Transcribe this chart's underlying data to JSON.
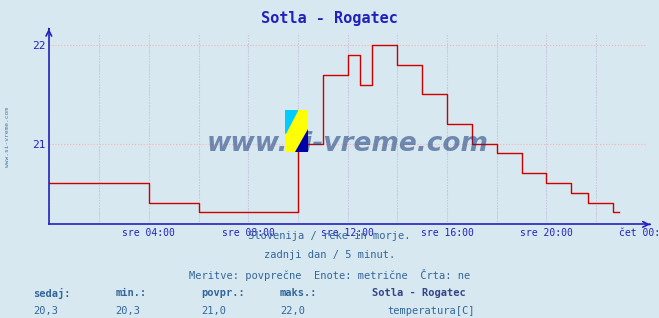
{
  "title": "Sotla - Rogatec",
  "bg_color": "#d8e8f0",
  "plot_bg_color": "#d8e8f0",
  "line_color": "#cc0000",
  "grid_color_h": "#ffb0b0",
  "grid_color_v": "#c8c8e0",
  "axis_color": "#2222bb",
  "text_color": "#336699",
  "dark_text_color": "#334488",
  "ylim": [
    20.18,
    22.12
  ],
  "yticks": [
    21.0,
    22.0
  ],
  "xlim": [
    0,
    288
  ],
  "xtick_labels": [
    "sre 04:00",
    "sre 08:00",
    "sre 12:00",
    "sre 16:00",
    "sre 20:00",
    "čet 00:00"
  ],
  "xtick_positions": [
    48,
    96,
    144,
    192,
    240,
    288
  ],
  "watermark": "www.si-vreme.com",
  "subtitle1": "Slovenija / reke in morje.",
  "subtitle2": "zadnji dan / 5 minut.",
  "subtitle3": "Meritve: povprečne  Enote: metrične  Črta: ne",
  "legend_title": "Sotla - Rogatec",
  "legend_label": "temperatura[C]",
  "stat_labels": [
    "sedaj:",
    "min.:",
    "povpr.:",
    "maks.:"
  ],
  "stat_values": [
    "20,3",
    "20,3",
    "21,0",
    "22,0"
  ],
  "left_label": "www.si-vreme.com",
  "temperature_data": [
    20.6,
    20.6,
    20.6,
    20.6,
    20.6,
    20.6,
    20.6,
    20.6,
    20.6,
    20.6,
    20.6,
    20.6,
    20.6,
    20.6,
    20.6,
    20.6,
    20.6,
    20.6,
    20.6,
    20.6,
    20.6,
    20.6,
    20.6,
    20.6,
    20.6,
    20.6,
    20.6,
    20.6,
    20.6,
    20.6,
    20.6,
    20.6,
    20.6,
    20.6,
    20.6,
    20.6,
    20.6,
    20.6,
    20.6,
    20.6,
    20.6,
    20.6,
    20.6,
    20.6,
    20.6,
    20.6,
    20.6,
    20.6,
    20.4,
    20.4,
    20.4,
    20.4,
    20.4,
    20.4,
    20.4,
    20.4,
    20.4,
    20.4,
    20.4,
    20.4,
    20.4,
    20.4,
    20.4,
    20.4,
    20.4,
    20.4,
    20.4,
    20.4,
    20.4,
    20.4,
    20.4,
    20.4,
    20.3,
    20.3,
    20.3,
    20.3,
    20.3,
    20.3,
    20.3,
    20.3,
    20.3,
    20.3,
    20.3,
    20.3,
    20.3,
    20.3,
    20.3,
    20.3,
    20.3,
    20.3,
    20.3,
    20.3,
    20.3,
    20.3,
    20.3,
    20.3,
    20.3,
    20.3,
    20.3,
    20.3,
    20.3,
    20.3,
    20.3,
    20.3,
    20.3,
    20.3,
    20.3,
    20.3,
    20.3,
    20.3,
    20.3,
    20.3,
    20.3,
    20.3,
    20.3,
    20.3,
    20.3,
    20.3,
    20.3,
    20.3,
    21.0,
    21.0,
    21.0,
    21.0,
    21.0,
    21.0,
    21.0,
    21.0,
    21.0,
    21.0,
    21.0,
    21.0,
    21.7,
    21.7,
    21.7,
    21.7,
    21.7,
    21.7,
    21.7,
    21.7,
    21.7,
    21.7,
    21.7,
    21.7,
    21.9,
    21.9,
    21.9,
    21.9,
    21.9,
    21.9,
    21.6,
    21.6,
    21.6,
    21.6,
    21.6,
    21.6,
    22.0,
    22.0,
    22.0,
    22.0,
    22.0,
    22.0,
    22.0,
    22.0,
    22.0,
    22.0,
    22.0,
    22.0,
    21.8,
    21.8,
    21.8,
    21.8,
    21.8,
    21.8,
    21.8,
    21.8,
    21.8,
    21.8,
    21.8,
    21.8,
    21.5,
    21.5,
    21.5,
    21.5,
    21.5,
    21.5,
    21.5,
    21.5,
    21.5,
    21.5,
    21.5,
    21.5,
    21.2,
    21.2,
    21.2,
    21.2,
    21.2,
    21.2,
    21.2,
    21.2,
    21.2,
    21.2,
    21.2,
    21.2,
    21.0,
    21.0,
    21.0,
    21.0,
    21.0,
    21.0,
    21.0,
    21.0,
    21.0,
    21.0,
    21.0,
    21.0,
    20.9,
    20.9,
    20.9,
    20.9,
    20.9,
    20.9,
    20.9,
    20.9,
    20.9,
    20.9,
    20.9,
    20.9,
    20.7,
    20.7,
    20.7,
    20.7,
    20.7,
    20.7,
    20.7,
    20.7,
    20.7,
    20.7,
    20.7,
    20.7,
    20.6,
    20.6,
    20.6,
    20.6,
    20.6,
    20.6,
    20.6,
    20.6,
    20.6,
    20.6,
    20.6,
    20.6,
    20.5,
    20.5,
    20.5,
    20.5,
    20.5,
    20.5,
    20.5,
    20.5,
    20.4,
    20.4,
    20.4,
    20.4,
    20.4,
    20.4,
    20.4,
    20.4,
    20.4,
    20.4,
    20.4,
    20.4,
    20.3,
    20.3,
    20.3,
    20.3
  ]
}
